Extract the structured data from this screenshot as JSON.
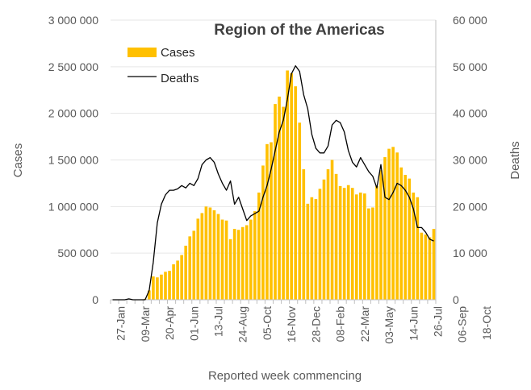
{
  "chart_data": {
    "type": "bar+line",
    "title": "Region of the Americas",
    "xlabel": "Reported week commencing",
    "ylabel_left": "Cases",
    "ylabel_right": "Deaths",
    "ylim_left": [
      0,
      3000000
    ],
    "ylim_right": [
      0,
      60000
    ],
    "yticks_left": [
      "0",
      "500 000",
      "1 000 000",
      "1 500 000",
      "2 000 000",
      "2 500 000",
      "3 000 000"
    ],
    "yticks_right": [
      "0",
      "10 000",
      "20 000",
      "30 000",
      "40 000",
      "50 000",
      "60 000"
    ],
    "x_tick_labels": [
      "27-Jan",
      "09-Mar",
      "20-Apr",
      "01-Jun",
      "13-Jul",
      "24-Aug",
      "05-Oct",
      "16-Nov",
      "28-Dec",
      "08-Feb",
      "22-Mar",
      "03-May",
      "14-Jun",
      "26-Jul",
      "06-Sep",
      "18-Oct"
    ],
    "x_tick_week_index": [
      2,
      8,
      14,
      20,
      26,
      32,
      38,
      44,
      50,
      56,
      62,
      68,
      74,
      80,
      86,
      92
    ],
    "legend": {
      "placement": "top-left"
    },
    "colors": {
      "cases": "#FFC000",
      "deaths": "#000000"
    },
    "series": [
      {
        "name": "Cases",
        "type": "bar",
        "color": "#FFC000",
        "values": [
          0,
          0,
          0,
          0,
          0,
          0,
          0,
          0,
          10000,
          100000,
          250000,
          240000,
          270000,
          300000,
          310000,
          380000,
          420000,
          480000,
          580000,
          680000,
          740000,
          870000,
          930000,
          1000000,
          990000,
          960000,
          920000,
          860000,
          850000,
          650000,
          760000,
          750000,
          780000,
          800000,
          860000,
          950000,
          1150000,
          1440000,
          1670000,
          1690000,
          2100000,
          2180000,
          2070000,
          2460000,
          2430000,
          2290000,
          1900000,
          1400000,
          1030000,
          1100000,
          1080000,
          1190000,
          1290000,
          1400000,
          1500000,
          1350000,
          1220000,
          1200000,
          1230000,
          1200000,
          1130000,
          1150000,
          1140000,
          980000,
          990000,
          1220000,
          1390000,
          1530000,
          1620000,
          1640000,
          1580000,
          1420000,
          1340000,
          1300000,
          1150000,
          1100000,
          720000,
          700000,
          670000,
          760000
        ]
      },
      {
        "name": "Deaths",
        "type": "line",
        "color": "#000000",
        "values": [
          0,
          0,
          0,
          0,
          200,
          0,
          0,
          0,
          0,
          2000,
          8000,
          16500,
          20500,
          22500,
          23500,
          23500,
          23800,
          24500,
          24000,
          25000,
          24500,
          26000,
          29000,
          30000,
          30500,
          29500,
          27000,
          25000,
          23500,
          25500,
          20500,
          22000,
          19500,
          17000,
          18000,
          18500,
          19000,
          22000,
          24500,
          28000,
          32000,
          36000,
          38500,
          43000,
          48500,
          50200,
          49000,
          44000,
          41000,
          35500,
          32500,
          31500,
          31500,
          33000,
          37500,
          38500,
          38000,
          36000,
          32000,
          29500,
          28500,
          30500,
          29000,
          27500,
          26500,
          24000,
          29000,
          22000,
          21500,
          23000,
          25000,
          24500,
          23500,
          22000,
          19500,
          15500,
          15500,
          14500,
          13000,
          12600
        ]
      }
    ]
  }
}
